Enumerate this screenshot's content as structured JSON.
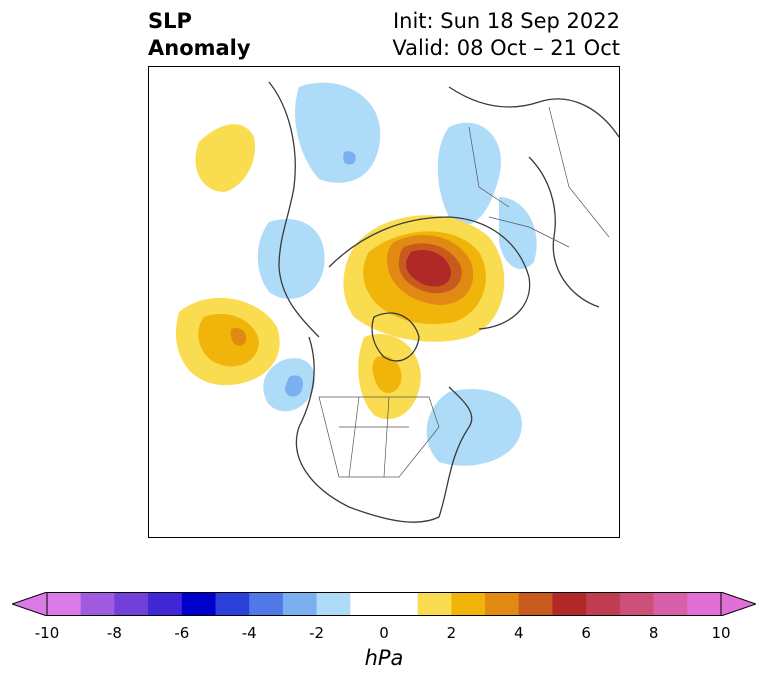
{
  "title_left_line1": "SLP",
  "title_left_line2": "Anomaly",
  "title_right_line1": "Init: Sun 18 Sep 2022",
  "title_right_line2": "Valid: 08 Oct – 21 Oct",
  "colorbar": {
    "label": "hPa",
    "ticks": [
      "-10",
      "-8",
      "-6",
      "-4",
      "-2",
      "0",
      "2",
      "4",
      "6",
      "8",
      "10"
    ],
    "colors": [
      "#d97ae6",
      "#a05ae0",
      "#7040d8",
      "#4028d8",
      "#0000cc",
      "#2a40d8",
      "#5078e6",
      "#7ab0f0",
      "#aedcf8",
      "#ffffff",
      "#ffffff",
      "#fadc50",
      "#f0b40a",
      "#e08a14",
      "#c85a1e",
      "#b02828",
      "#c03c50",
      "#cc5078",
      "#d860a8",
      "#e070d8"
    ]
  },
  "map": {
    "region": "Northern Hemisphere polar stereographic",
    "anomaly_colors": {
      "weak_negative": "#aedcf8",
      "mid_negative": "#7ab0f0",
      "weak_positive": "#fadc50",
      "mid_positive": "#f0b40a",
      "strong_positive": "#e08a14",
      "peak_positive": "#b02828"
    }
  }
}
